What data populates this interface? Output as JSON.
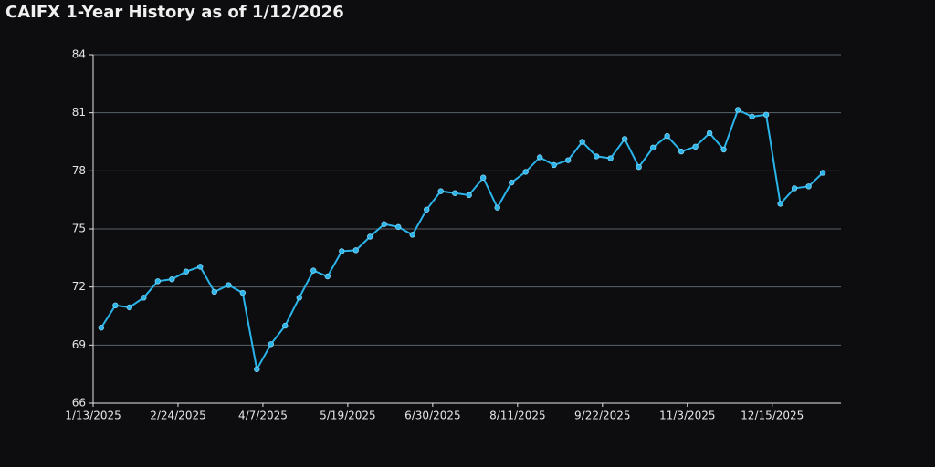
{
  "chart_data": {
    "type": "line",
    "title": "CAIFX 1-Year History as of 1/12/2026",
    "x": [
      "1/17/2025",
      "1/24/2025",
      "1/31/2025",
      "2/7/2025",
      "2/14/2025",
      "2/21/2025",
      "2/28/2025",
      "3/7/2025",
      "3/14/2025",
      "3/21/2025",
      "3/28/2025",
      "4/4/2025",
      "4/11/2025",
      "4/18/2025",
      "4/25/2025",
      "5/2/2025",
      "5/9/2025",
      "5/16/2025",
      "5/23/2025",
      "5/30/2025",
      "6/6/2025",
      "6/13/2025",
      "6/20/2025",
      "6/27/2025",
      "7/4/2025",
      "7/11/2025",
      "7/18/2025",
      "7/25/2025",
      "8/1/2025",
      "8/8/2025",
      "8/15/2025",
      "8/22/2025",
      "8/29/2025",
      "9/5/2025",
      "9/12/2025",
      "9/19/2025",
      "9/26/2025",
      "10/3/2025",
      "10/10/2025",
      "10/17/2025",
      "10/24/2025",
      "10/31/2025",
      "11/7/2025",
      "11/14/2025",
      "11/21/2025",
      "11/28/2025",
      "12/5/2025",
      "12/12/2025",
      "12/19/2025",
      "12/26/2025",
      "1/2/2026",
      "1/9/2026"
    ],
    "series": [
      {
        "color": "#2ab4ea",
        "values": [
          69.9,
          71.05,
          70.95,
          71.45,
          72.3,
          72.4,
          72.8,
          73.05,
          71.75,
          72.1,
          71.7,
          67.75,
          69.05,
          70.0,
          71.45,
          72.85,
          72.55,
          73.85,
          73.9,
          74.6,
          75.25,
          75.1,
          74.7,
          76.0,
          76.95,
          76.85,
          76.75,
          77.65,
          76.1,
          77.4,
          77.95,
          78.7,
          78.3,
          78.55,
          79.5,
          78.75,
          78.65,
          79.65,
          78.2,
          79.2,
          79.8,
          79.0,
          79.25,
          79.95,
          79.1,
          81.15,
          80.8,
          80.9,
          76.3,
          77.1,
          77.2,
          77.9
        ]
      }
    ],
    "xlim": [
      "1/13/2025",
      "1/18/2026"
    ],
    "xticks": [
      "1/13/2025",
      "2/24/2025",
      "4/7/2025",
      "5/19/2025",
      "6/30/2025",
      "8/11/2025",
      "9/22/2025",
      "11/3/2025",
      "12/15/2025"
    ],
    "ylim": [
      66,
      84
    ],
    "yticks": [
      66,
      69,
      72,
      75,
      78,
      81,
      84
    ],
    "grid": true
  }
}
